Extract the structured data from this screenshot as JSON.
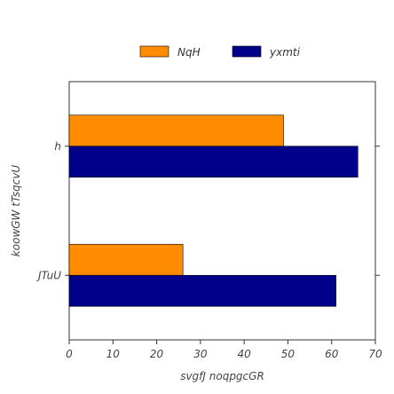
{
  "chart_data": {
    "type": "bar",
    "orientation": "horizontal",
    "categories": [
      "JTuU",
      "h"
    ],
    "series": [
      {
        "name": "NqH",
        "color": "#ff8c00",
        "values": [
          26,
          49
        ]
      },
      {
        "name": "yxmti",
        "color": "#00008b",
        "values": [
          61,
          66
        ]
      }
    ],
    "xlabel": "svgfJ noqpgcGR",
    "ylabel": "koowGW tTsqcvU",
    "xlim": [
      0,
      70
    ],
    "xticks": [
      0,
      10,
      20,
      30,
      40,
      50,
      60,
      70
    ],
    "grid": false,
    "legend_position": "top-center"
  }
}
